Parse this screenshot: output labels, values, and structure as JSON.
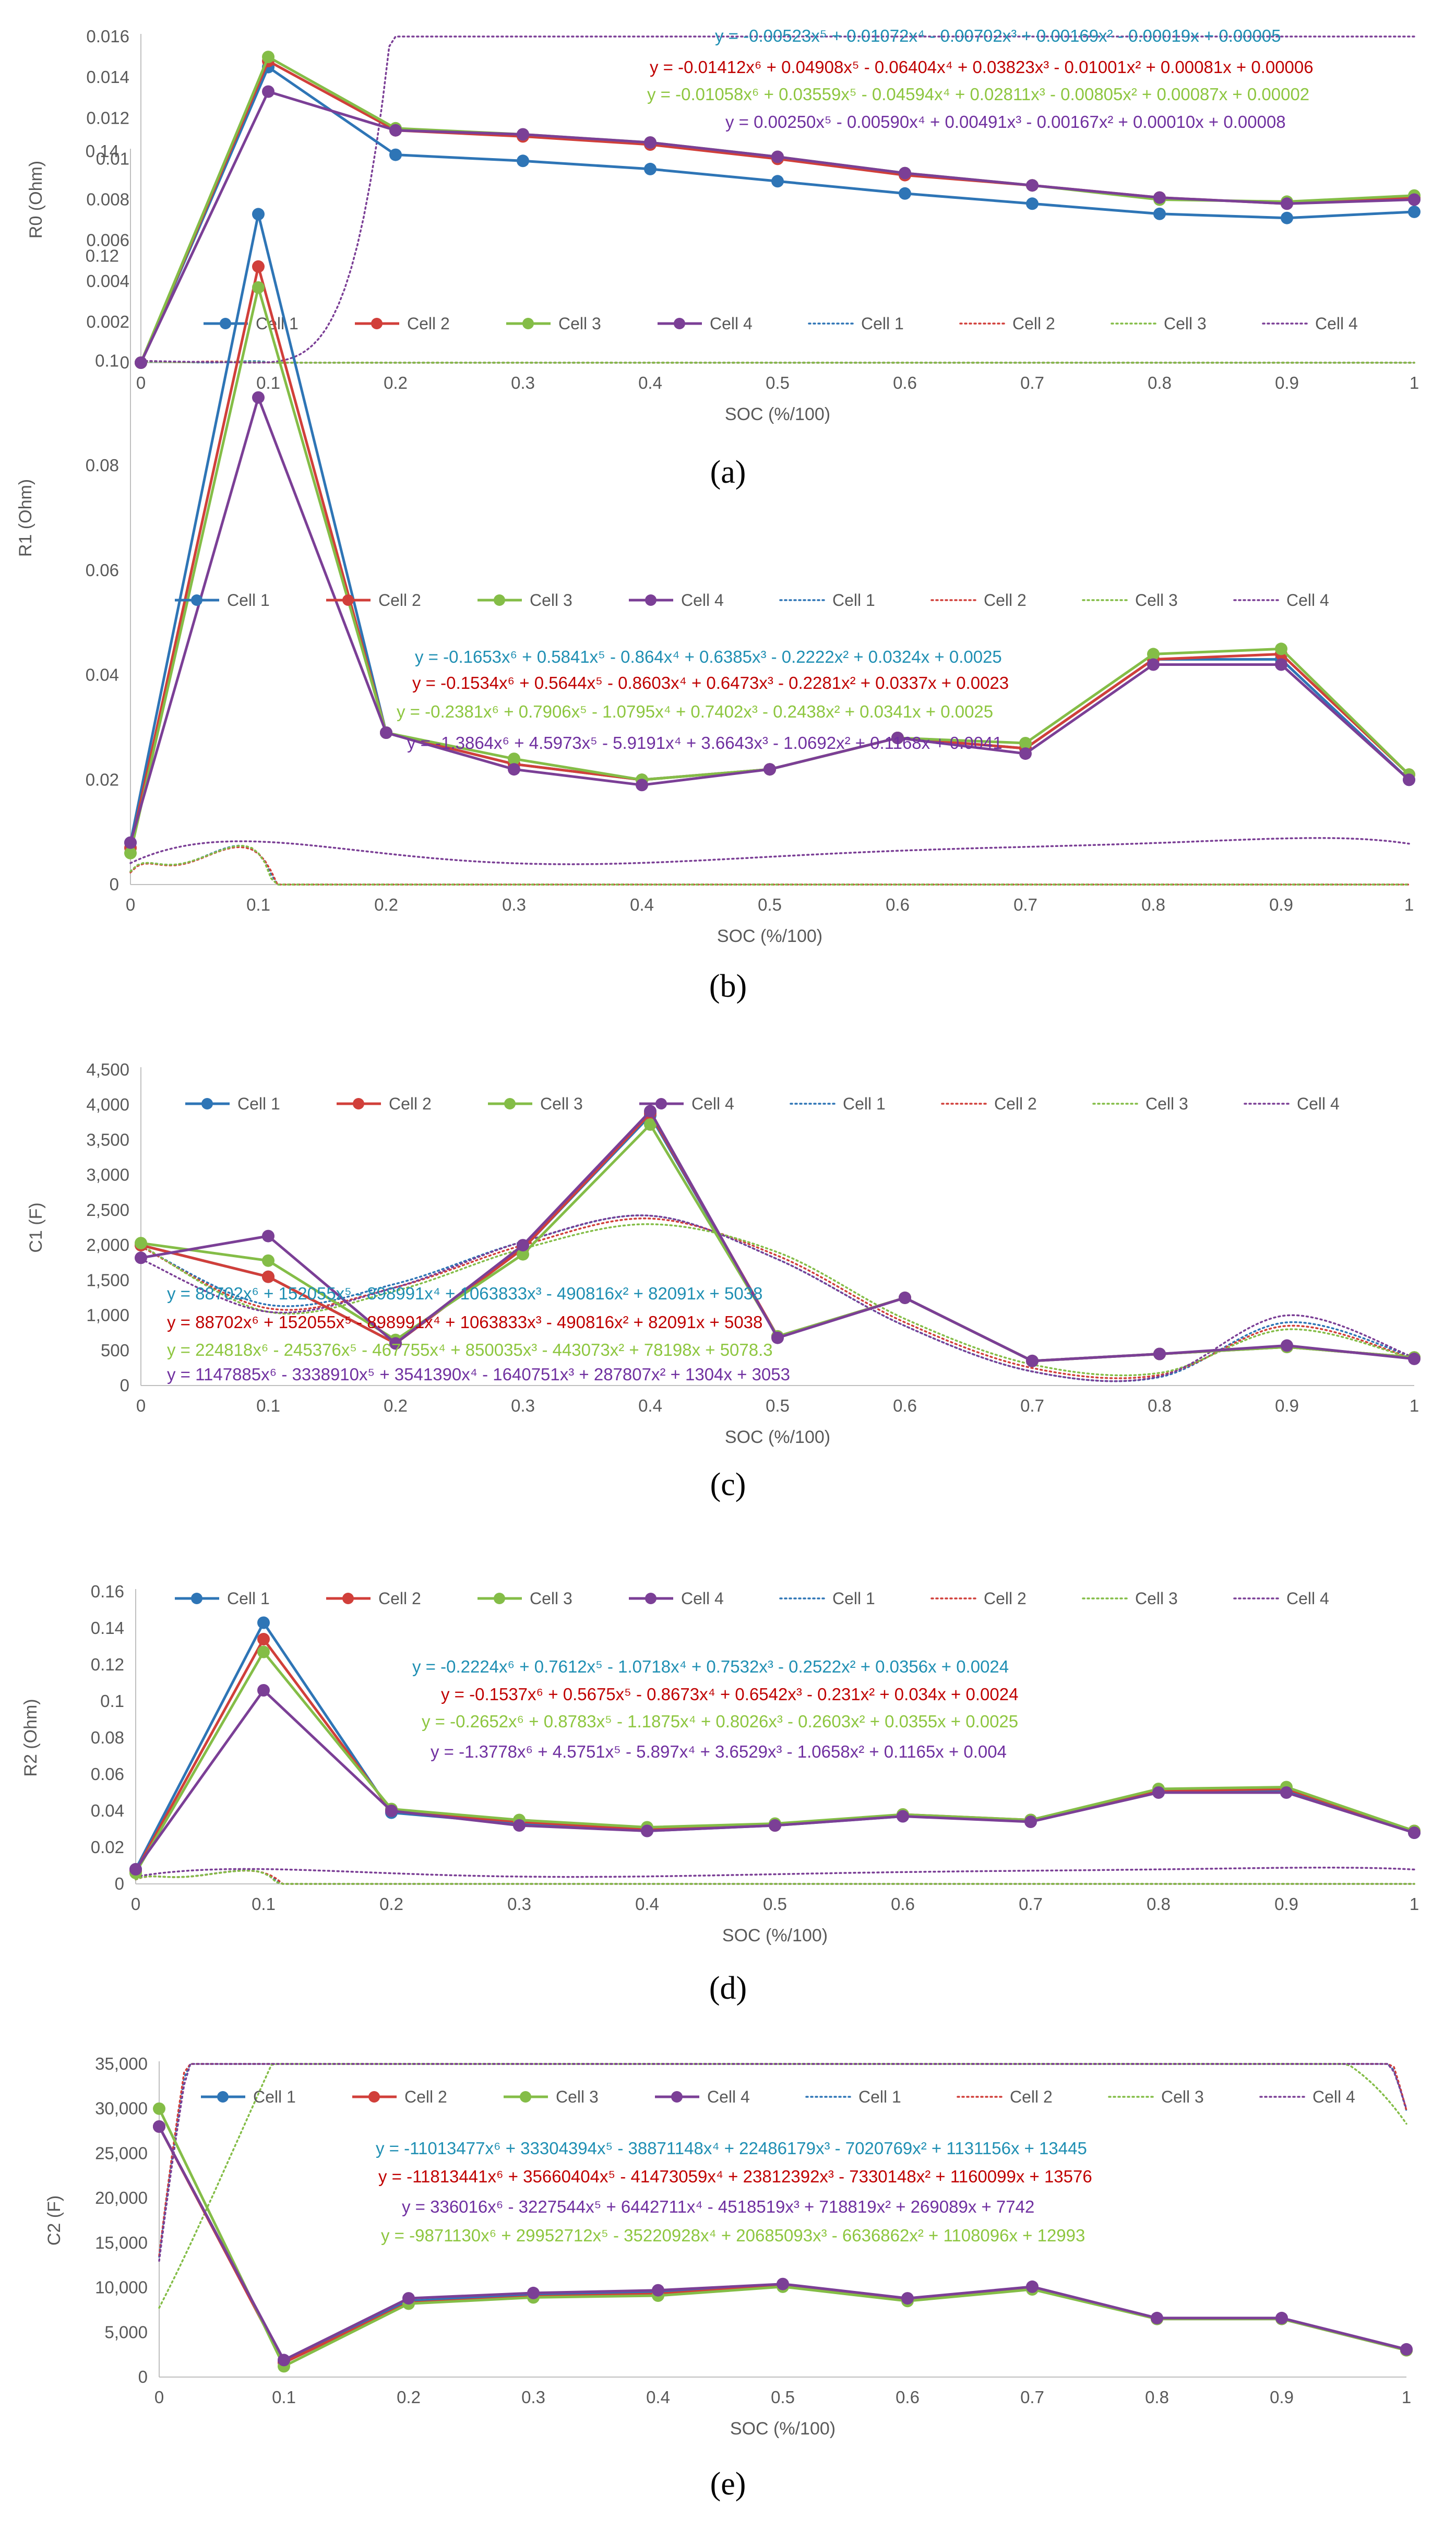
{
  "figure": {
    "caption_labels": [
      "(a)",
      "(b)",
      "(c)",
      "(d)",
      "(e)"
    ]
  },
  "colors": {
    "cell1": "#2E75B6",
    "cell2": "#D13F3A",
    "cell3": "#84BD47",
    "cell4": "#7B3F96",
    "eq1": "#1F8FB3",
    "eq2": "#C00000",
    "eq3": "#8DC63F",
    "eq4": "#7030A0",
    "axis": "#BFBFBF",
    "text": "#595959"
  },
  "chart_data": [
    {
      "type": "line",
      "panel": "(a)",
      "xlabel": "SOC (%/100)",
      "ylabel": "R0 (Ohm)",
      "xlim": [
        0,
        1
      ],
      "ylim": [
        0,
        0.016
      ],
      "x_ticks": [
        "0",
        "0.1",
        "0.2",
        "0.3",
        "0.4",
        "0.5",
        "0.6",
        "0.7",
        "0.8",
        "0.9",
        "1"
      ],
      "y_ticks": [
        "0",
        "0.002",
        "0.004",
        "0.006",
        "0.008",
        "0.01",
        "0.012",
        "0.014",
        "0.016"
      ],
      "legend_position": "bottom-inside",
      "legend": [
        "Cell 1",
        "Cell 2",
        "Cell 3",
        "Cell 4",
        "Cell 1",
        "Cell 2",
        "Cell 3",
        "Cell 4"
      ],
      "x": [
        0,
        0.1,
        0.2,
        0.3,
        0.4,
        0.5,
        0.6,
        0.7,
        0.8,
        0.9,
        1
      ],
      "series": [
        {
          "name": "Cell 1",
          "values": [
            0,
            0.0145,
            0.0102,
            0.0099,
            0.0095,
            0.0089,
            0.0083,
            0.0078,
            0.0073,
            0.0071,
            0.0074
          ]
        },
        {
          "name": "Cell 2",
          "values": [
            0,
            0.0148,
            0.0114,
            0.0111,
            0.0107,
            0.01,
            0.0092,
            0.0087,
            0.0081,
            0.0078,
            0.0081
          ]
        },
        {
          "name": "Cell 3",
          "values": [
            0,
            0.015,
            0.0115,
            0.0112,
            0.0108,
            0.0101,
            0.0093,
            0.0087,
            0.008,
            0.0079,
            0.0082
          ]
        },
        {
          "name": "Cell 4",
          "values": [
            0,
            0.0133,
            0.0114,
            0.0112,
            0.0108,
            0.0101,
            0.0093,
            0.0087,
            0.0081,
            0.0078,
            0.008
          ]
        }
      ],
      "trendlines": [
        {
          "name": "Cell 1",
          "coef": [
            5e-05,
            -0.00019,
            0.00169,
            -0.00702,
            0.01072,
            -0.00523
          ],
          "scale": 10
        },
        {
          "name": "Cell 2",
          "coef": [
            6e-05,
            0.00081,
            -0.01001,
            0.03823,
            -0.06404,
            0.04908,
            -0.01412
          ],
          "scale": 10
        },
        {
          "name": "Cell 3",
          "coef": [
            2e-05,
            0.00087,
            -0.00805,
            0.02811,
            -0.04594,
            0.03559,
            -0.01058
          ],
          "scale": 10
        },
        {
          "name": "Cell 4",
          "coef": [
            8e-05,
            0.0001,
            -0.00167,
            0.00491,
            -0.0059,
            0.0025
          ],
          "scale": 10
        }
      ],
      "equations": [
        "y = -0.00523x⁵ + 0.01072x⁴ - 0.00702x³ + 0.00169x² - 0.00019x + 0.00005",
        "y = -0.01412x⁶ + 0.04908x⁵ - 0.06404x⁴ + 0.03823x³ - 0.01001x² + 0.00081x + 0.00006",
        "y = -0.01058x⁶ + 0.03559x⁵ - 0.04594x⁴ + 0.02811x³ - 0.00805x² + 0.00087x + 0.00002",
        "y = 0.00250x⁵ - 0.00590x⁴ + 0.00491x³ - 0.00167x² + 0.00010x + 0.00008"
      ]
    },
    {
      "type": "line",
      "panel": "(b)",
      "xlabel": "SOC (%/100)",
      "ylabel": "R1 (Ohm)",
      "xlim": [
        0,
        1
      ],
      "ylim": [
        0,
        0.14
      ],
      "x_ticks": [
        "0",
        "0.1",
        "0.2",
        "0.3",
        "0.4",
        "0.5",
        "0.6",
        "0.7",
        "0.8",
        "0.9",
        "1"
      ],
      "y_ticks": [
        "0",
        "0.02",
        "0.04",
        "0.06",
        "0.08",
        "0.1",
        "0.12",
        "0.14"
      ],
      "legend_position": "top-inside",
      "legend": [
        "Cell 1",
        "Cell 2",
        "Cell 3",
        "Cell 4",
        "Cell 1",
        "Cell 2",
        "Cell 3",
        "Cell 4"
      ],
      "x": [
        0,
        0.1,
        0.2,
        0.3,
        0.4,
        0.5,
        0.6,
        0.7,
        0.8,
        0.9,
        1
      ],
      "series": [
        {
          "name": "Cell 1",
          "values": [
            0.008,
            0.128,
            0.029,
            0.023,
            0.02,
            0.022,
            0.028,
            0.026,
            0.043,
            0.043,
            0.02
          ]
        },
        {
          "name": "Cell 2",
          "values": [
            0.007,
            0.118,
            0.029,
            0.023,
            0.02,
            0.022,
            0.028,
            0.026,
            0.043,
            0.044,
            0.021
          ]
        },
        {
          "name": "Cell 3",
          "values": [
            0.006,
            0.114,
            0.029,
            0.024,
            0.02,
            0.022,
            0.028,
            0.027,
            0.044,
            0.045,
            0.021
          ]
        },
        {
          "name": "Cell 4",
          "values": [
            0.008,
            0.093,
            0.029,
            0.022,
            0.019,
            0.022,
            0.028,
            0.025,
            0.042,
            0.042,
            0.02
          ]
        }
      ],
      "trendlines": [
        {
          "name": "Cell 1",
          "coef": [
            0.0025,
            0.0324,
            -0.2222,
            0.6385,
            -0.864,
            0.5841,
            -0.1653
          ],
          "scale": 10
        },
        {
          "name": "Cell 2",
          "coef": [
            0.0023,
            0.0337,
            -0.2281,
            0.6473,
            -0.8603,
            0.5644,
            -0.1534
          ],
          "scale": 10
        },
        {
          "name": "Cell 3",
          "coef": [
            0.0025,
            0.0341,
            -0.2438,
            0.7402,
            -1.0795,
            0.7906,
            -0.2381
          ],
          "scale": 10
        },
        {
          "name": "Cell 4",
          "coef": [
            0.0041,
            0.1168,
            -1.0692,
            3.6643,
            -5.9191,
            4.5973,
            -1.3864
          ],
          "scale": 1
        }
      ],
      "equations": [
        "y = -0.1653x⁶ + 0.5841x⁵ - 0.864x⁴ + 0.6385x³ - 0.2222x² + 0.0324x + 0.0025",
        "y = -0.1534x⁶ + 0.5644x⁵ - 0.8603x⁴ + 0.6473x³ - 0.2281x² + 0.0337x + 0.0023",
        "y = -0.2381x⁶ + 0.7906x⁵ - 1.0795x⁴ + 0.7402x³ - 0.2438x² + 0.0341x + 0.0025",
        "y = -1.3864x⁶ + 4.5973x⁵ - 5.9191x⁴ + 3.6643x³ - 1.0692x² + 0.1168x + 0.0041"
      ]
    },
    {
      "type": "line",
      "panel": "(c)",
      "xlabel": "SOC (%/100)",
      "ylabel": "C1 (F)",
      "xlim": [
        0,
        1
      ],
      "ylim": [
        0,
        4500
      ],
      "x_ticks": [
        "0",
        "0.1",
        "0.2",
        "0.3",
        "0.4",
        "0.5",
        "0.6",
        "0.7",
        "0.8",
        "0.9",
        "1"
      ],
      "y_ticks": [
        "0",
        "500",
        "1,000",
        "1,500",
        "2,000",
        "2,500",
        "3,000",
        "3,500",
        "4,000",
        "4,500"
      ],
      "legend_position": "top-inside",
      "legend": [
        "Cell 1",
        "Cell 2",
        "Cell 3",
        "Cell 4",
        "Cell 1",
        "Cell 2",
        "Cell 3",
        "Cell 4"
      ],
      "x": [
        0,
        0.1,
        0.2,
        0.3,
        0.4,
        0.5,
        0.6,
        0.7,
        0.8,
        0.9,
        1
      ],
      "series": [
        {
          "name": "Cell 1",
          "values": [
            2000,
            1550,
            600,
            1950,
            3850,
            700,
            1250,
            350,
            450,
            550,
            400
          ]
        },
        {
          "name": "Cell 2",
          "values": [
            2000,
            1550,
            600,
            1950,
            3880,
            700,
            1250,
            350,
            450,
            550,
            400
          ]
        },
        {
          "name": "Cell 3",
          "values": [
            2030,
            1780,
            650,
            1870,
            3720,
            700,
            1250,
            350,
            450,
            550,
            400
          ]
        },
        {
          "name": "Cell 4",
          "values": [
            1820,
            2130,
            600,
            2000,
            3910,
            680,
            1250,
            350,
            450,
            570,
            380
          ]
        }
      ],
      "trendline_peaks": [
        {
          "name": "Cell 1",
          "values": [
            1980,
            1150,
            1450,
            2050,
            2420,
            1800,
            850,
            200,
            120,
            900,
            400
          ]
        },
        {
          "name": "Cell 2",
          "values": [
            1980,
            1100,
            1400,
            2000,
            2380,
            1850,
            900,
            250,
            150,
            850,
            380
          ]
        },
        {
          "name": "Cell 3",
          "values": [
            2000,
            1050,
            1350,
            1950,
            2300,
            1900,
            950,
            300,
            180,
            800,
            380
          ]
        },
        {
          "name": "Cell 4",
          "values": [
            1800,
            1050,
            1400,
            2050,
            2420,
            1800,
            850,
            200,
            130,
            1000,
            400
          ]
        }
      ],
      "equations": [
        "y = 88702x⁶ + 152055x⁵ - 898991x⁴ + 1063833x³ - 490816x² + 82091x + 5038",
        "y = 88702x⁶ + 152055x⁵ - 898991x⁴ + 1063833x³ - 490816x² + 82091x + 5038",
        "y = 224818x⁶ - 245376x⁵ - 467755x⁴ + 850035x³ - 443073x² + 78198x + 5078.3",
        "y = 1147885x⁶ - 3338910x⁵ + 3541390x⁴ - 1640751x³ + 287807x² + 1304x + 3053"
      ]
    },
    {
      "type": "line",
      "panel": "(d)",
      "xlabel": "SOC (%/100)",
      "ylabel": "R2 (Ohm)",
      "xlim": [
        0,
        1
      ],
      "ylim": [
        0,
        0.16
      ],
      "x_ticks": [
        "0",
        "0.1",
        "0.2",
        "0.3",
        "0.4",
        "0.5",
        "0.6",
        "0.7",
        "0.8",
        "0.9",
        "1"
      ],
      "y_ticks": [
        "0",
        "0.02",
        "0.04",
        "0.06",
        "0.08",
        "0.1",
        "0.12",
        "0.14",
        "0.16"
      ],
      "legend_position": "top-inside",
      "legend": [
        "Cell 1",
        "Cell 2",
        "Cell 3",
        "Cell 4",
        "Cell 1",
        "Cell 2",
        "Cell 3",
        "Cell 4"
      ],
      "x": [
        0,
        0.1,
        0.2,
        0.3,
        0.4,
        0.5,
        0.6,
        0.7,
        0.8,
        0.9,
        1
      ],
      "series": [
        {
          "name": "Cell 1",
          "values": [
            0.008,
            0.143,
            0.039,
            0.033,
            0.029,
            0.032,
            0.037,
            0.035,
            0.051,
            0.051,
            0.028
          ]
        },
        {
          "name": "Cell 2",
          "values": [
            0.007,
            0.134,
            0.04,
            0.034,
            0.03,
            0.032,
            0.038,
            0.035,
            0.051,
            0.052,
            0.029
          ]
        },
        {
          "name": "Cell 3",
          "values": [
            0.006,
            0.127,
            0.041,
            0.035,
            0.031,
            0.033,
            0.038,
            0.035,
            0.052,
            0.053,
            0.029
          ]
        },
        {
          "name": "Cell 4",
          "values": [
            0.008,
            0.106,
            0.04,
            0.032,
            0.029,
            0.032,
            0.037,
            0.034,
            0.05,
            0.05,
            0.028
          ]
        }
      ],
      "trendlines": [
        {
          "name": "Cell 1",
          "coef": [
            0.0024,
            0.0356,
            -0.2522,
            0.7532,
            -1.0718,
            0.7612,
            -0.2224
          ],
          "scale": 10
        },
        {
          "name": "Cell 2",
          "coef": [
            0.0024,
            0.034,
            -0.231,
            0.6542,
            -0.8673,
            0.5675,
            -0.1537
          ],
          "scale": 10
        },
        {
          "name": "Cell 3",
          "coef": [
            0.0025,
            0.0355,
            -0.2603,
            0.8026,
            -1.1875,
            0.8783,
            -0.2652
          ],
          "scale": 10
        },
        {
          "name": "Cell 4",
          "coef": [
            0.004,
            0.1165,
            -1.0658,
            3.6529,
            -5.897,
            4.5751,
            -1.3778
          ],
          "scale": 1
        }
      ],
      "equations": [
        "y = -0.2224x⁶ + 0.7612x⁵ - 1.0718x⁴ + 0.7532x³ - 0.2522x² + 0.0356x + 0.0024",
        "y = -0.1537x⁶ + 0.5675x⁵ - 0.8673x⁴ + 0.6542x³ - 0.231x² + 0.034x + 0.0024",
        "y = -0.2652x⁶ + 0.8783x⁵ - 1.1875x⁴ + 0.8026x³ - 0.2603x² + 0.0355x + 0.0025",
        "y = -1.3778x⁶ + 4.5751x⁵ - 5.897x⁴ + 3.6529x³ - 1.0658x² + 0.1165x + 0.004"
      ]
    },
    {
      "type": "line",
      "panel": "(e)",
      "xlabel": "SOC (%/100)",
      "ylabel": "C2 (F)",
      "xlim": [
        0,
        1
      ],
      "ylim": [
        0,
        35000
      ],
      "x_ticks": [
        "0",
        "0.1",
        "0.2",
        "0.3",
        "0.4",
        "0.5",
        "0.6",
        "0.7",
        "0.8",
        "0.9",
        "1"
      ],
      "y_ticks": [
        "0",
        "5,000",
        "10,000",
        "15,000",
        "20,000",
        "25,000",
        "30,000",
        "35,000"
      ],
      "legend_position": "top-inside",
      "legend": [
        "Cell 1",
        "Cell 2",
        "Cell 3",
        "Cell 4",
        "Cell 1",
        "Cell 2",
        "Cell 3",
        "Cell 4"
      ],
      "x": [
        0,
        0.1,
        0.2,
        0.3,
        0.4,
        0.5,
        0.6,
        0.7,
        0.8,
        0.9,
        1
      ],
      "series": [
        {
          "name": "Cell 1",
          "values": [
            28000,
            1700,
            8500,
            9200,
            9500,
            10300,
            8700,
            10000,
            6500,
            6500,
            3000
          ]
        },
        {
          "name": "Cell 2",
          "values": [
            28000,
            1600,
            8300,
            9000,
            9300,
            10200,
            8600,
            9900,
            6500,
            6500,
            3000
          ]
        },
        {
          "name": "Cell 3",
          "values": [
            30000,
            1200,
            8200,
            8900,
            9100,
            10100,
            8500,
            9800,
            6500,
            6500,
            3000
          ]
        },
        {
          "name": "Cell 4",
          "values": [
            28000,
            1900,
            8800,
            9400,
            9700,
            10400,
            8800,
            10100,
            6600,
            6600,
            3100
          ]
        }
      ],
      "trendlines": [
        {
          "name": "Cell 1",
          "coef": [
            13445,
            1131156,
            -7020769,
            22486179,
            -38871148,
            33304394,
            -11013477
          ],
          "scale": 1
        },
        {
          "name": "Cell 2",
          "coef": [
            13576,
            1160099,
            -7330148,
            23812392,
            -41473059,
            35660404,
            -11813441
          ],
          "scale": 1
        },
        {
          "name": "Cell 3",
          "coef": [
            7742,
            269089,
            718819,
            -4518519,
            6442711,
            -3227544,
            336016
          ],
          "scale": 1
        },
        {
          "name": "Cell 4",
          "coef": [
            12993,
            1108096,
            -6636862,
            20685093,
            -35220928,
            29952712,
            -9871130
          ],
          "scale": 1
        }
      ],
      "equations": [
        "y = -11013477x⁶ + 33304394x⁵ - 38871148x⁴ + 22486179x³ - 7020769x² + 1131156x + 13445",
        "y = -11813441x⁶ + 35660404x⁵ - 41473059x⁴ + 23812392x³ - 7330148x² + 1160099x + 13576",
        "y = 336016x⁶ - 3227544x⁵ + 6442711x⁴ - 4518519x³ + 718819x² + 269089x + 7742",
        "y = -9871130x⁶ + 29952712x⁵ - 35220928x⁴ + 20685093x³ - 6636862x² + 1108096x + 12993"
      ]
    }
  ]
}
